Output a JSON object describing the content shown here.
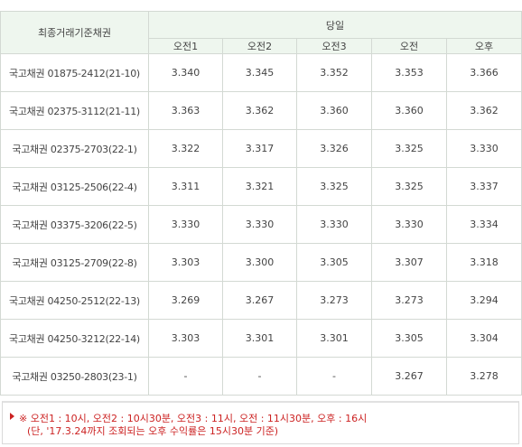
{
  "table": {
    "corner_header": "최종거래기준채권",
    "group_header": "당일",
    "columns": [
      "오전1",
      "오전2",
      "오전3",
      "오전",
      "오후"
    ],
    "rows": [
      {
        "name": "국고채권 01875-2412(21-10)",
        "values": [
          "3.340",
          "3.345",
          "3.352",
          "3.353",
          "3.366"
        ]
      },
      {
        "name": "국고채권 02375-3112(21-11)",
        "values": [
          "3.363",
          "3.362",
          "3.360",
          "3.360",
          "3.362"
        ]
      },
      {
        "name": "국고채권 02375-2703(22-1)",
        "values": [
          "3.322",
          "3.317",
          "3.326",
          "3.325",
          "3.330"
        ]
      },
      {
        "name": "국고채권 03125-2506(22-4)",
        "values": [
          "3.311",
          "3.321",
          "3.325",
          "3.325",
          "3.337"
        ]
      },
      {
        "name": "국고채권 03375-3206(22-5)",
        "values": [
          "3.330",
          "3.330",
          "3.330",
          "3.330",
          "3.334"
        ]
      },
      {
        "name": "국고채권 03125-2709(22-8)",
        "values": [
          "3.303",
          "3.300",
          "3.305",
          "3.307",
          "3.318"
        ]
      },
      {
        "name": "국고채권 04250-2512(22-13)",
        "values": [
          "3.269",
          "3.267",
          "3.273",
          "3.273",
          "3.294"
        ]
      },
      {
        "name": "국고채권 04250-3212(22-14)",
        "values": [
          "3.303",
          "3.301",
          "3.301",
          "3.305",
          "3.304"
        ]
      },
      {
        "name": "국고채권 03250-2803(23-1)",
        "values": [
          "-",
          "-",
          "-",
          "3.267",
          "3.278"
        ]
      }
    ]
  },
  "note": {
    "line1": "※ 오전1 : 10시, 오전2 : 10시30분, 오전3 : 11시, 오전 : 11시30분, 오후 : 16시",
    "line2": "(단, '17.3.24까지 조회되는 오후 수익률은 15시30분 기준)",
    "accent_color": "#cc2222"
  }
}
